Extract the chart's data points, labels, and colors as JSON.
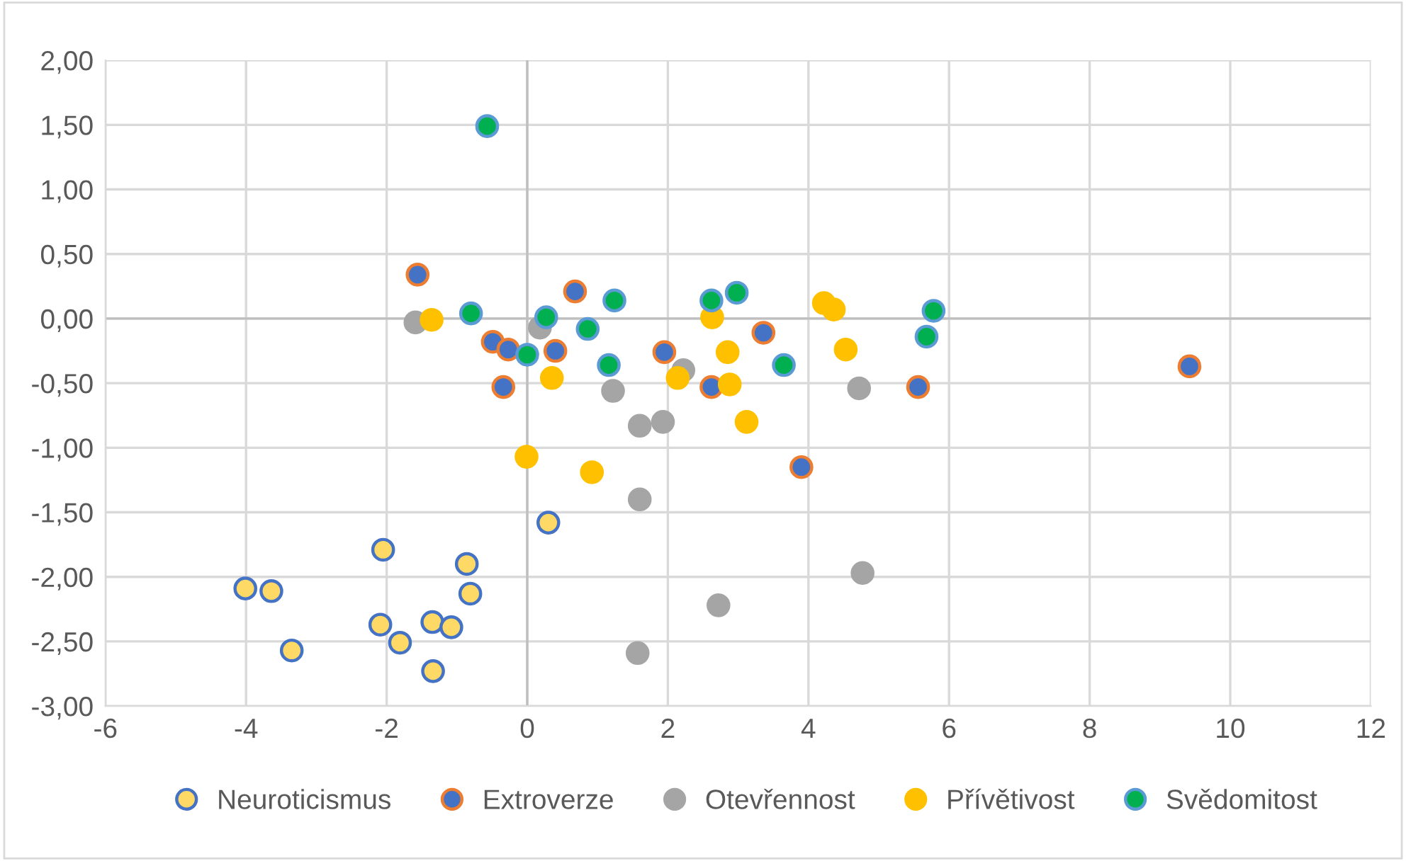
{
  "chart_data": {
    "type": "scatter",
    "marker": "circle",
    "grid": true,
    "legend": "bottom",
    "xlim": [
      -6,
      12
    ],
    "xticks": [
      -6,
      -4,
      -2,
      0,
      2,
      4,
      6,
      8,
      10,
      12
    ],
    "ylim": [
      -3,
      2
    ],
    "yticks": [
      {
        "value": -3,
        "label": "-3,00"
      },
      {
        "value": -2.5,
        "label": "-2,50"
      },
      {
        "value": -2,
        "label": "-2,00"
      },
      {
        "value": -1.5,
        "label": "-1,50"
      },
      {
        "value": -1,
        "label": "-1,00"
      },
      {
        "value": -0.5,
        "label": "-0,50"
      },
      {
        "value": 0,
        "label": "0,00"
      },
      {
        "value": 0.5,
        "label": "0,50"
      },
      {
        "value": 1,
        "label": "1,00"
      },
      {
        "value": 1.5,
        "label": "1,50"
      },
      {
        "value": 2,
        "label": "2,00"
      }
    ],
    "series": [
      {
        "name": "Neuroticismus",
        "color": "#ffd966",
        "x": [
          -4.01,
          -3.64,
          -3.35,
          -2.05,
          -2.09,
          -1.81,
          -0.86,
          -0.81,
          -1.35,
          -1.08,
          -1.34,
          0.3
        ],
        "values": [
          -2.09,
          -2.11,
          -2.57,
          -1.79,
          -2.37,
          -2.51,
          -1.9,
          -2.13,
          -2.35,
          -2.39,
          -2.73,
          -1.58
        ]
      },
      {
        "name": "Extroverze",
        "color": "#4472c4",
        "x": [
          -1.56,
          -0.49,
          -0.27,
          -0.34,
          0.68,
          0.4,
          1.95,
          3.36,
          2.62,
          3.9,
          5.56,
          9.42
        ],
        "values": [
          0.34,
          -0.18,
          -0.24,
          -0.53,
          0.21,
          -0.25,
          -0.26,
          -0.11,
          -0.53,
          -1.15,
          -0.53,
          -0.37
        ]
      },
      {
        "name": "Otevřennost",
        "color": "#a5a5a5",
        "x": [
          -1.59,
          0.18,
          1.22,
          1.6,
          1.93,
          1.6,
          2.22,
          4.72,
          2.72,
          4.77,
          1.57
        ],
        "values": [
          -0.03,
          -0.07,
          -0.56,
          -0.83,
          -0.8,
          -1.4,
          -0.4,
          -0.54,
          -2.22,
          -1.97,
          -2.59
        ]
      },
      {
        "name": "Přívětivost",
        "color": "#ffc000",
        "x": [
          -1.36,
          0.35,
          -0.01,
          0.92,
          2.14,
          2.63,
          2.85,
          2.88,
          3.12,
          4.22,
          4.36,
          4.53
        ],
        "values": [
          -0.01,
          -0.46,
          -1.07,
          -1.19,
          -0.46,
          0.01,
          -0.26,
          -0.51,
          -0.8,
          0.12,
          0.07,
          -0.24
        ]
      },
      {
        "name": "Svědomitost",
        "color": "#00b050",
        "x": [
          -0.57,
          0.27,
          0.86,
          1.24,
          1.16,
          2.62,
          2.98,
          3.65,
          5.78,
          5.68,
          -0.8,
          0.0
        ],
        "values": [
          1.49,
          0.01,
          -0.08,
          0.14,
          -0.36,
          0.14,
          0.2,
          -0.36,
          0.06,
          -0.14,
          0.04,
          -0.28
        ]
      }
    ]
  }
}
